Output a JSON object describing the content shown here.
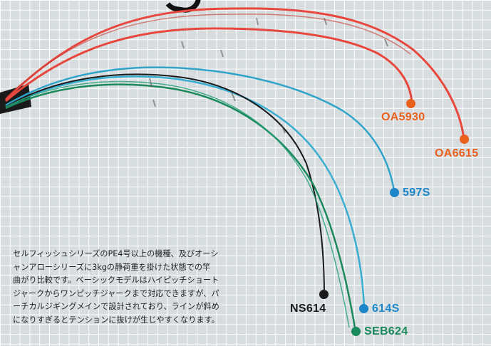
{
  "colors": {
    "red": "#e8473e",
    "orange": "#e8601c",
    "blue": "#1b86c9",
    "cyan": "#2fa4c9",
    "green": "#1a8a5c",
    "black": "#1a1a1a"
  },
  "rods": [
    {
      "id": "oa6615",
      "label": "OA6615",
      "color": "orange"
    },
    {
      "id": "oa5930",
      "label": "OA5930",
      "color": "orange"
    },
    {
      "id": "597s",
      "label": "597S",
      "color": "blue"
    },
    {
      "id": "614s",
      "label": "614S",
      "color": "blue"
    },
    {
      "id": "ns614",
      "label": "NS614",
      "color": "black"
    },
    {
      "id": "seb624",
      "label": "SEB624",
      "color": "green"
    }
  ],
  "description": {
    "lines": [
      "セルフィッシュシリーズのPE4号以上の機種、及びオーシ",
      "ャンアローシリーズに3kgの静荷重を掛けた状態での竿",
      "曲がり比較です。ベーシックモデルはハイピッチショート",
      "ジャークからワンピッチジャークまで対応できますが、パ",
      "ーチカルジギングメインで設計されており、ラインが斜め",
      "になりすぎるとテンションに抜けが生じやすくなります。"
    ]
  }
}
